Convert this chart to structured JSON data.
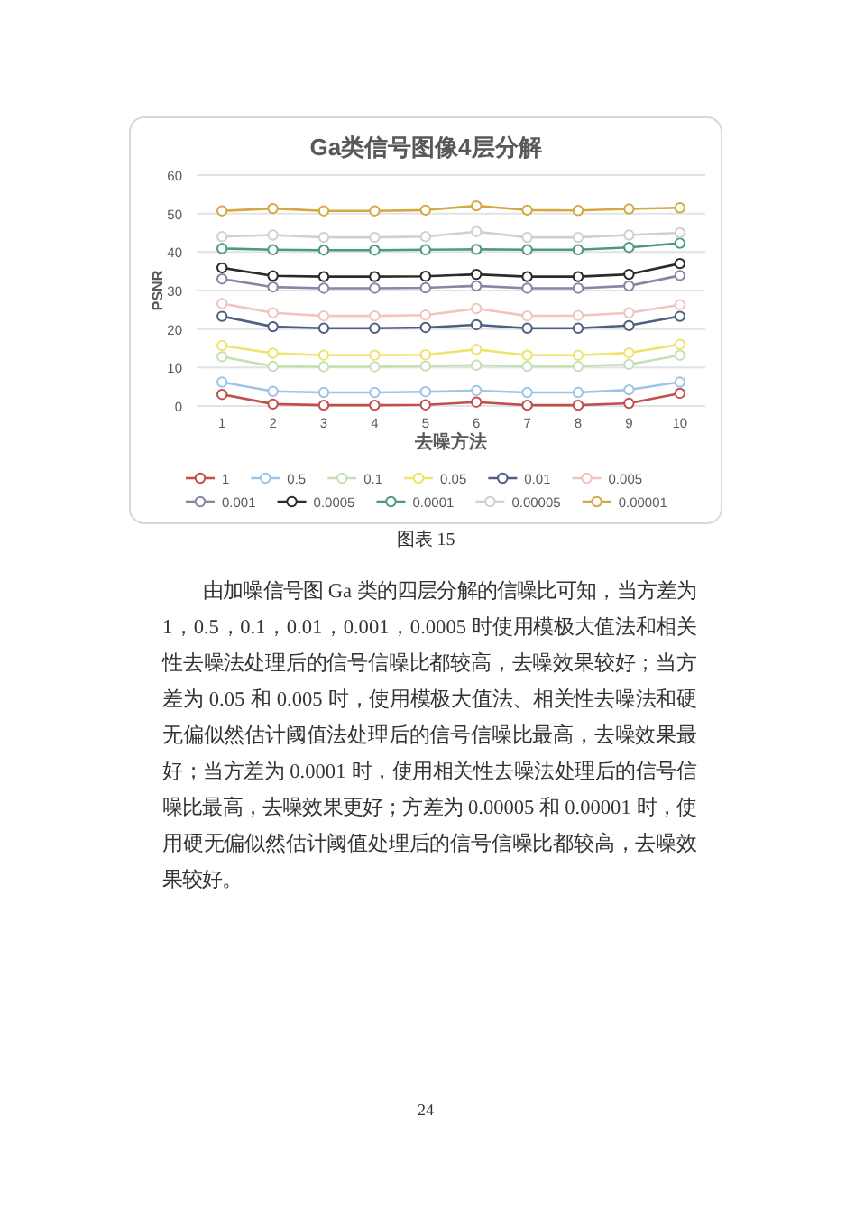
{
  "chart_data": {
    "type": "line",
    "title": "Ga类信号图像4层分解",
    "xlabel": "去噪方法",
    "ylabel": "PSNR",
    "categories": [
      "1",
      "2",
      "3",
      "4",
      "5",
      "6",
      "7",
      "8",
      "9",
      "10"
    ],
    "ylim": [
      0,
      60
    ],
    "yticks": [
      0,
      10,
      20,
      30,
      40,
      50,
      60
    ],
    "grid": "y",
    "legend": "bottom",
    "marker": "circle",
    "line_style": "solid",
    "series": [
      {
        "name": "1",
        "color": "#c0504d",
        "values": [
          3.0,
          0.5,
          0.2,
          0.2,
          0.3,
          1.0,
          0.2,
          0.2,
          0.7,
          3.3
        ]
      },
      {
        "name": "0.5",
        "color": "#9dc3e6",
        "values": [
          6.2,
          3.8,
          3.5,
          3.5,
          3.7,
          4.0,
          3.5,
          3.5,
          4.2,
          6.2
        ]
      },
      {
        "name": "0.1",
        "color": "#c5e0b4",
        "values": [
          12.8,
          10.3,
          10.2,
          10.2,
          10.4,
          10.6,
          10.3,
          10.3,
          10.8,
          13.2
        ]
      },
      {
        "name": "0.05",
        "color": "#f0e36a",
        "values": [
          15.7,
          13.7,
          13.2,
          13.2,
          13.3,
          14.7,
          13.2,
          13.2,
          13.8,
          16.0
        ]
      },
      {
        "name": "0.01",
        "color": "#4f5f80",
        "values": [
          23.3,
          20.6,
          20.2,
          20.2,
          20.4,
          21.1,
          20.2,
          20.2,
          20.9,
          23.3
        ]
      },
      {
        "name": "0.005",
        "color": "#f2c4c0",
        "values": [
          26.6,
          24.2,
          23.4,
          23.4,
          23.6,
          25.3,
          23.4,
          23.5,
          24.2,
          26.3
        ]
      },
      {
        "name": "0.001",
        "color": "#8a84a6",
        "values": [
          33.0,
          30.9,
          30.6,
          30.6,
          30.7,
          31.2,
          30.6,
          30.6,
          31.2,
          33.9
        ]
      },
      {
        "name": "0.0005",
        "color": "#2b2b2b",
        "values": [
          35.9,
          33.8,
          33.6,
          33.6,
          33.7,
          34.2,
          33.6,
          33.6,
          34.2,
          37.0
        ]
      },
      {
        "name": "0.0001",
        "color": "#4a9b7f",
        "values": [
          40.9,
          40.6,
          40.5,
          40.5,
          40.6,
          40.7,
          40.6,
          40.6,
          41.2,
          42.3
        ]
      },
      {
        "name": "0.00005",
        "color": "#d0d0d0",
        "values": [
          44.0,
          44.4,
          43.8,
          43.8,
          44.0,
          45.3,
          43.8,
          43.8,
          44.4,
          45.0
        ]
      },
      {
        "name": "0.00001",
        "color": "#d4a843",
        "values": [
          50.7,
          51.3,
          50.7,
          50.7,
          50.9,
          52.0,
          50.9,
          50.8,
          51.2,
          51.5
        ]
      }
    ],
    "annotations": [
      "图表 15",
      "由加噪信号图 Ga 类的四层分解的信噪比可知，当方差为 1，0.5，0.1，0.01，0.001，0.0005 时使用模极大值法和相关性去噪法处理后的信号信噪比都较高，去噪效果较好；当方差为 0.05 和 0.005 时，使用模极大值法、相关性去噪法和硬无偏似然估计阈值法处理后的信号信噪比最高，去噪效果最好；当方差为 0.0001 时，使用相关性去噪法处理后的信号信噪比最高，去噪效果更好；方差为 0.00005 和 0.00001 时，使用硬无偏似然估计阈值处理后的信号信噪比都较高，去噪效果较好。",
      "24"
    ]
  }
}
